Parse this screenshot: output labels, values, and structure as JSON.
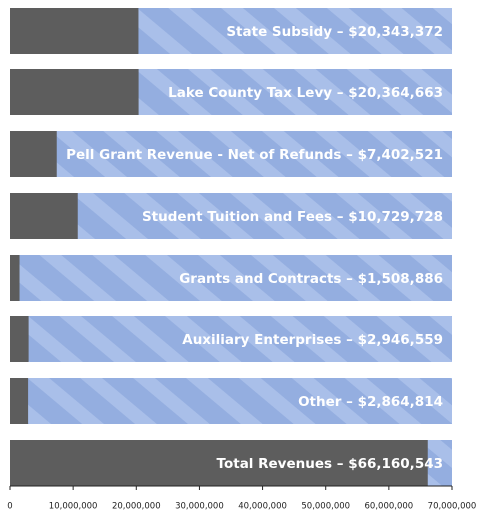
{
  "chart_data": {
    "type": "bar",
    "orientation": "horizontal",
    "categories": [
      "State Subsidy – $20,343,372",
      "Lake County Tax Levy – $20,364,663",
      "Pell Grant Revenue - Net of Refunds – $7,402,521",
      "Student Tuition and Fees – $10,729,728",
      "Grants and Contracts – $1,508,886",
      "Auxiliary Enterprises – $2,946,559",
      "Other – $2,864,814",
      "Total Revenues – $66,160,543"
    ],
    "values": [
      20343372,
      20364663,
      7402521,
      10729728,
      1508886,
      2946559,
      2864814,
      66160543
    ],
    "color": "#5d5d5d",
    "background_color": "#94aee0",
    "xlim": [
      0,
      70000000
    ],
    "xticks": [
      0,
      {
        "value": 10000000,
        "label": "10,000,000"
      },
      {
        "value": 20000000,
        "label": "20,000,000"
      },
      {
        "value": 30000000,
        "label": "30,000,000"
      },
      {
        "value": 40000000,
        "label": "40,000,000"
      },
      {
        "value": 50000000,
        "label": "50,000,000"
      },
      {
        "value": 60000000,
        "label": "60,000,000"
      },
      {
        "value": 70000000,
        "label": "70,000,000"
      }
    ]
  }
}
